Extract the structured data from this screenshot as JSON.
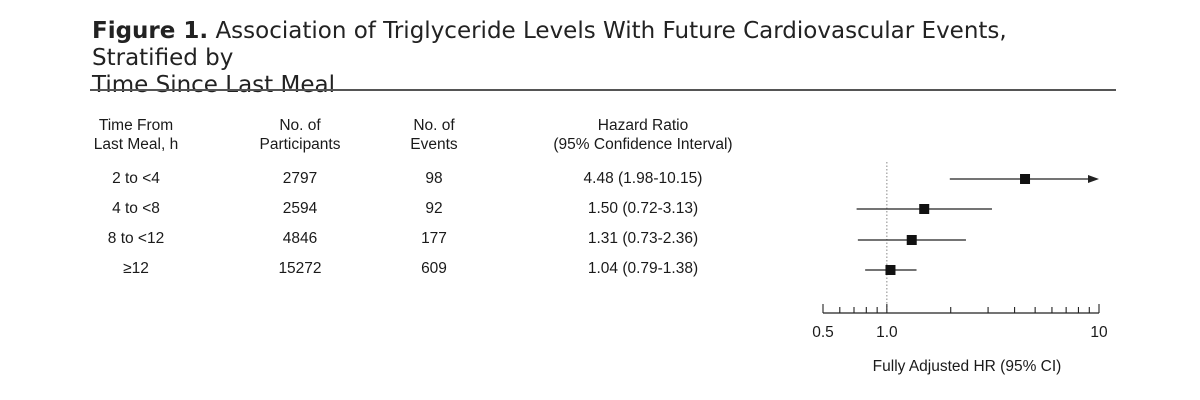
{
  "figure": {
    "label": "Figure 1.",
    "title_line1": "Association of Triglyceride Levels With Future Cardiovascular Events, Stratified by",
    "title_line2": "Time Since Last Meal"
  },
  "table": {
    "headers": {
      "time": [
        "Time From",
        "Last Meal, h"
      ],
      "participants": [
        "No. of",
        "Participants"
      ],
      "events": [
        "No. of",
        "Events"
      ],
      "hr": [
        "Hazard Ratio",
        "(95% Confidence Interval)"
      ]
    },
    "rows": [
      {
        "time": "2 to <4",
        "participants": "2797",
        "events": "98",
        "hr": "4.48 (1.98-10.15)"
      },
      {
        "time": "4 to <8",
        "participants": "2594",
        "events": "92",
        "hr": "1.50 (0.72-3.13)"
      },
      {
        "time": "8 to <12",
        "participants": "4846",
        "events": "177",
        "hr": "1.31 (0.73-2.36)"
      },
      {
        "time": "≥12",
        "participants": "15272",
        "events": "609",
        "hr": "1.04 (0.79-1.38)"
      }
    ]
  },
  "chart_data": {
    "type": "forest",
    "scale": "log",
    "xlabel": "Fully Adjusted HR (95% CI)",
    "xlim": [
      0.5,
      10
    ],
    "xticks_labeled": [
      {
        "value": 0.5,
        "label": "0.5"
      },
      {
        "value": 1.0,
        "label": "1.0"
      },
      {
        "value": 10,
        "label": "10"
      }
    ],
    "reference_line": 1.0,
    "series": [
      {
        "label": "2 to <4",
        "hr": 4.48,
        "ci_low": 1.98,
        "ci_high": 10.15,
        "arrow_right": true
      },
      {
        "label": "4 to <8",
        "hr": 1.5,
        "ci_low": 0.72,
        "ci_high": 3.13
      },
      {
        "label": "8 to <12",
        "hr": 1.31,
        "ci_low": 0.73,
        "ci_high": 2.36
      },
      {
        "label": "≥12",
        "hr": 1.04,
        "ci_low": 0.79,
        "ci_high": 1.38
      }
    ],
    "colors": {
      "marker": "#111111",
      "line": "#222222",
      "reference": "#888888"
    }
  }
}
